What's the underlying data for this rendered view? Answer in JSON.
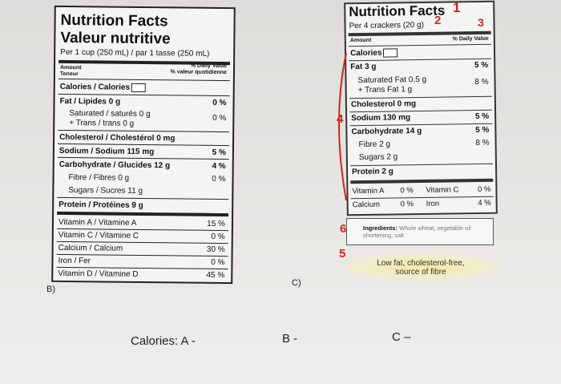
{
  "labelB": {
    "title_en": "Nutrition Facts",
    "title_fr": "Valeur nutritive",
    "serving": "Per 1 cup (250 mL) / par 1 tasse (250 mL)",
    "amount_header": "Amount",
    "teneur_header": "Teneur",
    "dv_header": "% Daily Value",
    "dv_header_fr": "% valeur quotidienne",
    "rows": [
      {
        "label": "Calories / Calories",
        "dv": ""
      },
      {
        "label": "Fat / Lipides 0 g",
        "dv": "0 %"
      },
      {
        "label": "Saturated / saturés 0 g",
        "dv": "0 %"
      },
      {
        "label": "+ Trans / trans 0 g",
        "dv": ""
      },
      {
        "label": "Cholesterol / Cholestérol 0 mg",
        "dv": ""
      },
      {
        "label": "Sodium / Sodium 115 mg",
        "dv": "5 %"
      },
      {
        "label": "Carbohydrate / Glucides 12 g",
        "dv": "4 %"
      },
      {
        "label": "Fibre / Fibres 0 g",
        "dv": "0 %"
      },
      {
        "label": "Sugars / Sucres 11 g",
        "dv": ""
      },
      {
        "label": "Protein / Protéines 9 g",
        "dv": ""
      },
      {
        "label": "Vitamin A / Vitamine A",
        "dv": "15 %"
      },
      {
        "label": "Vitamin C / Vitamine C",
        "dv": "0 %"
      },
      {
        "label": "Calcium / Calcium",
        "dv": "30 %"
      },
      {
        "label": "Iron / Fer",
        "dv": "0 %"
      },
      {
        "label": "Vitamin D / Vitamine D",
        "dv": "45 %"
      }
    ]
  },
  "labelC": {
    "title": "Nutrition Facts",
    "serving": "Per 4 crackers (20 g)",
    "amount_header": "Amount",
    "dv_header": "% Daily Value",
    "rows": [
      {
        "label": "Calories",
        "dv": ""
      },
      {
        "label": "Fat 3 g",
        "dv": "5 %"
      },
      {
        "label": "Saturated Fat 0.5 g",
        "dv": "8 %"
      },
      {
        "label": "+ Trans Fat 1 g",
        "dv": ""
      },
      {
        "label": "Cholesterol 0 mg",
        "dv": ""
      },
      {
        "label": "Sodium 130 mg",
        "dv": "5 %"
      },
      {
        "label": "Carbohydrate 14 g",
        "dv": "5 %"
      },
      {
        "label": "Fibre 2 g",
        "dv": "8 %"
      },
      {
        "label": "Sugars 2 g",
        "dv": ""
      },
      {
        "label": "Protein 2 g",
        "dv": ""
      }
    ],
    "vitamins": {
      "vitA_label": "Vitamin A",
      "vitA_dv": "0 %",
      "vitC_label": "Vitamin C",
      "vitC_dv": "0 %",
      "calcium_label": "Calcium",
      "calcium_dv": "0 %",
      "iron_label": "Iron",
      "iron_dv": "4 %"
    },
    "ingredients_label": "Ingredients:",
    "ingredients_text": "Whole wheat, vegetable oil shortening, salt",
    "claim": "Low fat, cholesterol-free, source of fibre"
  },
  "annotations": {
    "n1": "1",
    "n2": "2",
    "n3": "3",
    "n4": "4",
    "n5": "5",
    "n6": "6"
  },
  "captions": {
    "b_label": "B)",
    "c_label": "C)",
    "calories_a": "Calories: A -",
    "calories_b": "B -",
    "calories_c": "C –"
  },
  "colors": {
    "annotation_red": "#d0261e",
    "highlight": "#f3e9a6"
  }
}
